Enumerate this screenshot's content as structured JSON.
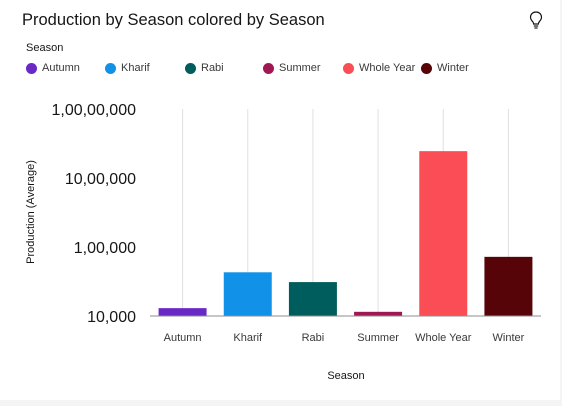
{
  "chart_data": {
    "type": "bar",
    "title": "Production by Season colored by Season",
    "xlabel": "Season",
    "ylabel": "Production (Average)",
    "yscale": "log",
    "ylim": [
      10000,
      10000000
    ],
    "yticks": [
      10000,
      100000,
      1000000,
      10000000
    ],
    "ytick_labels": [
      "10,000",
      "1,00,000",
      "10,00,000",
      "1,00,00,000"
    ],
    "categories": [
      "Autumn",
      "Kharif",
      "Rabi",
      "Summer",
      "Whole Year",
      "Winter"
    ],
    "values": [
      13000,
      43000,
      31000,
      11500,
      2450000,
      72000
    ],
    "colors": [
      "#6929c4",
      "#1192e8",
      "#005d5d",
      "#9f1853",
      "#fa4d56",
      "#570408"
    ],
    "legend": {
      "title": "Season",
      "placement": "top-left",
      "entries": [
        "Autumn",
        "Kharif",
        "Rabi",
        "Summer",
        "Whole Year",
        "Winter"
      ]
    },
    "grid": "vertical"
  },
  "icons": {
    "insight": "lightbulb-icon"
  }
}
